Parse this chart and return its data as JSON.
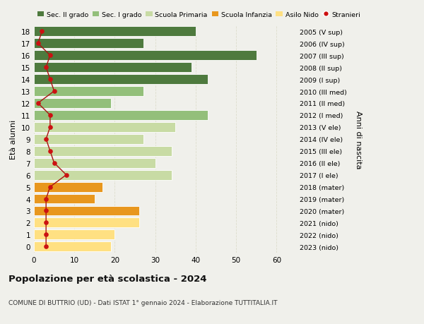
{
  "ages": [
    0,
    1,
    2,
    3,
    4,
    5,
    6,
    7,
    8,
    9,
    10,
    11,
    12,
    13,
    14,
    15,
    16,
    17,
    18
  ],
  "right_labels": [
    "2023 (nido)",
    "2022 (nido)",
    "2021 (nido)",
    "2020 (mater)",
    "2019 (mater)",
    "2018 (mater)",
    "2017 (I ele)",
    "2016 (II ele)",
    "2015 (III ele)",
    "2014 (IV ele)",
    "2013 (V ele)",
    "2012 (I med)",
    "2011 (II med)",
    "2010 (III med)",
    "2009 (I sup)",
    "2008 (II sup)",
    "2007 (III sup)",
    "2006 (IV sup)",
    "2005 (V sup)"
  ],
  "bar_values": [
    19,
    20,
    26,
    26,
    15,
    17,
    34,
    30,
    34,
    27,
    35,
    43,
    19,
    27,
    43,
    39,
    55,
    27,
    40
  ],
  "bar_colors": [
    "#FFE082",
    "#FFE082",
    "#FFE082",
    "#E8971E",
    "#E8971E",
    "#E8971E",
    "#C8DBA4",
    "#C8DBA4",
    "#C8DBA4",
    "#C8DBA4",
    "#C8DBA4",
    "#93BF7A",
    "#93BF7A",
    "#93BF7A",
    "#4E7A3E",
    "#4E7A3E",
    "#4E7A3E",
    "#4E7A3E",
    "#4E7A3E"
  ],
  "stranieri_values": [
    3,
    3,
    3,
    3,
    3,
    4,
    8,
    5,
    4,
    3,
    4,
    4,
    1,
    5,
    4,
    3,
    4,
    1,
    2
  ],
  "legend_labels": [
    "Sec. II grado",
    "Sec. I grado",
    "Scuola Primaria",
    "Scuola Infanzia",
    "Asilo Nido",
    "Stranieri"
  ],
  "legend_colors": [
    "#4E7A3E",
    "#93BF7A",
    "#C8DBA4",
    "#E8971E",
    "#FFE082",
    "#CC2222"
  ],
  "title": "Popolazione per età scolastica - 2024",
  "subtitle": "COMUNE DI BUTTRIO (UD) - Dati ISTAT 1° gennaio 2024 - Elaborazione TUTTITALIA.IT",
  "ylabel_left": "Età alunni",
  "ylabel_right": "Anni di nascita",
  "xlim": [
    0,
    65
  ],
  "xticks": [
    0,
    10,
    20,
    30,
    40,
    50,
    60
  ],
  "background_color": "#F0F0EB",
  "bar_height": 0.82
}
